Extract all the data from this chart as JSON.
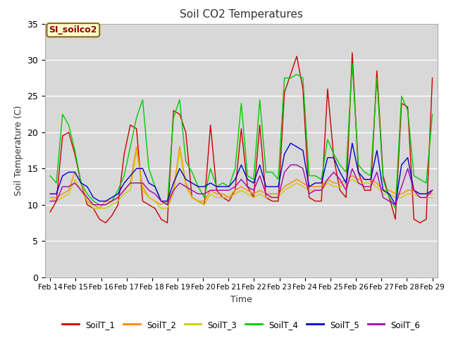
{
  "title": "Soil CO2 Temperatures",
  "xlabel": "Time",
  "ylabel": "Soil Temperature (C)",
  "annotation": "SI_soilco2",
  "ylim": [
    0,
    35
  ],
  "yticks": [
    0,
    5,
    10,
    15,
    20,
    25,
    30,
    35
  ],
  "x_labels": [
    "Feb 14",
    "Feb 15",
    "Feb 16",
    "Feb 17",
    "Feb 18",
    "Feb 19",
    "Feb 20",
    "Feb 21",
    "Feb 22",
    "Feb 23",
    "Feb 24",
    "Feb 25",
    "Feb 26",
    "Feb 27",
    "Feb 28",
    "Feb 29"
  ],
  "series_colors": [
    "#cc0000",
    "#ff8800",
    "#cccc00",
    "#00cc00",
    "#0000cc",
    "#aa00aa"
  ],
  "series_names": [
    "SoilT_1",
    "SoilT_2",
    "SoilT_3",
    "SoilT_4",
    "SoilT_5",
    "SoilT_6"
  ],
  "bg_upper": "#d8d8d8",
  "bg_lower": "#e8e8e8",
  "grid_color": "#ffffff",
  "SoilT_1": [
    9.0,
    10.5,
    19.5,
    20.0,
    17.0,
    13.0,
    10.0,
    9.5,
    8.0,
    7.5,
    8.5,
    10.0,
    17.0,
    21.0,
    20.5,
    10.5,
    10.0,
    9.5,
    8.0,
    7.5,
    23.0,
    22.5,
    20.0,
    11.0,
    10.5,
    10.0,
    21.0,
    12.0,
    11.0,
    10.5,
    12.0,
    20.5,
    12.5,
    11.0,
    21.0,
    11.0,
    10.5,
    10.5,
    25.5,
    28.0,
    30.5,
    26.0,
    11.0,
    10.5,
    10.5,
    26.0,
    16.5,
    12.0,
    11.0,
    31.0,
    14.5,
    12.0,
    12.0,
    28.5,
    14.0,
    11.0,
    8.0,
    24.0,
    23.5,
    8.0,
    7.5,
    8.0,
    27.5
  ],
  "SoilT_2": [
    11.0,
    11.0,
    11.5,
    12.0,
    14.5,
    13.0,
    10.5,
    10.0,
    9.5,
    10.5,
    10.5,
    11.0,
    12.0,
    13.0,
    18.0,
    12.5,
    11.0,
    10.5,
    10.0,
    10.5,
    12.0,
    18.0,
    13.0,
    11.0,
    10.5,
    10.5,
    12.0,
    11.5,
    11.5,
    11.0,
    12.0,
    12.5,
    12.0,
    11.5,
    12.0,
    11.5,
    11.5,
    11.5,
    12.5,
    13.0,
    13.5,
    13.0,
    12.5,
    12.5,
    12.5,
    13.5,
    13.0,
    13.0,
    13.5,
    14.0,
    13.5,
    13.5,
    13.5,
    13.0,
    12.0,
    12.0,
    11.5,
    11.5,
    12.0,
    12.0,
    11.5,
    11.5,
    11.5
  ],
  "SoilT_3": [
    11.0,
    10.5,
    11.0,
    11.5,
    13.5,
    12.0,
    10.5,
    9.5,
    9.5,
    9.5,
    10.0,
    10.5,
    11.5,
    12.0,
    17.5,
    12.0,
    11.0,
    10.5,
    9.5,
    9.5,
    11.5,
    17.5,
    12.5,
    11.0,
    10.5,
    10.0,
    11.5,
    11.0,
    11.0,
    11.0,
    11.5,
    12.0,
    11.5,
    11.0,
    11.5,
    11.0,
    11.0,
    11.0,
    12.0,
    12.5,
    13.0,
    12.5,
    12.0,
    12.0,
    12.0,
    13.0,
    12.5,
    12.5,
    13.0,
    13.5,
    13.0,
    13.0,
    13.0,
    12.5,
    11.5,
    11.5,
    11.0,
    11.0,
    11.5,
    11.5,
    11.0,
    11.0,
    11.0
  ],
  "SoilT_4": [
    14.0,
    13.0,
    22.5,
    21.0,
    17.5,
    13.0,
    11.5,
    10.5,
    10.0,
    10.0,
    10.5,
    12.0,
    14.0,
    18.0,
    22.0,
    24.5,
    15.0,
    12.5,
    10.5,
    10.0,
    22.0,
    24.5,
    16.0,
    14.5,
    12.5,
    11.0,
    15.0,
    12.5,
    13.0,
    12.5,
    15.0,
    24.0,
    14.0,
    13.5,
    24.5,
    14.5,
    14.5,
    13.5,
    27.5,
    27.5,
    28.0,
    27.5,
    14.0,
    14.0,
    13.5,
    19.0,
    17.0,
    15.5,
    14.5,
    29.5,
    15.5,
    14.5,
    14.0,
    27.5,
    13.5,
    11.0,
    9.5,
    25.0,
    23.0,
    14.0,
    13.5,
    13.0,
    22.5
  ],
  "SoilT_5": [
    11.5,
    11.5,
    14.0,
    14.5,
    14.5,
    13.0,
    12.5,
    11.0,
    10.5,
    10.5,
    11.0,
    11.5,
    13.0,
    14.0,
    15.0,
    15.0,
    13.0,
    12.5,
    10.5,
    10.5,
    13.0,
    15.0,
    13.5,
    13.0,
    12.5,
    12.5,
    13.0,
    12.5,
    12.5,
    12.5,
    13.5,
    15.5,
    13.5,
    13.0,
    15.5,
    12.5,
    12.5,
    12.5,
    17.0,
    18.5,
    18.0,
    17.5,
    12.5,
    13.0,
    13.0,
    16.5,
    16.5,
    14.5,
    13.0,
    18.5,
    14.5,
    13.5,
    13.5,
    17.5,
    12.0,
    11.5,
    10.0,
    15.5,
    16.5,
    12.0,
    11.5,
    11.5,
    12.0
  ],
  "SoilT_6": [
    10.5,
    10.5,
    12.5,
    12.5,
    13.0,
    12.0,
    11.0,
    10.0,
    10.0,
    10.0,
    10.5,
    11.0,
    12.0,
    13.0,
    13.0,
    13.0,
    12.0,
    11.5,
    10.5,
    10.0,
    12.0,
    13.0,
    12.5,
    12.0,
    11.5,
    11.5,
    12.0,
    12.0,
    12.0,
    12.0,
    12.5,
    13.5,
    12.5,
    12.0,
    14.0,
    11.5,
    11.0,
    11.0,
    14.5,
    15.5,
    15.5,
    15.0,
    11.5,
    12.0,
    12.0,
    13.5,
    14.5,
    13.5,
    12.0,
    15.0,
    13.0,
    12.5,
    12.5,
    14.5,
    11.0,
    10.5,
    10.0,
    12.5,
    15.0,
    12.0,
    11.0,
    11.0,
    12.0
  ]
}
